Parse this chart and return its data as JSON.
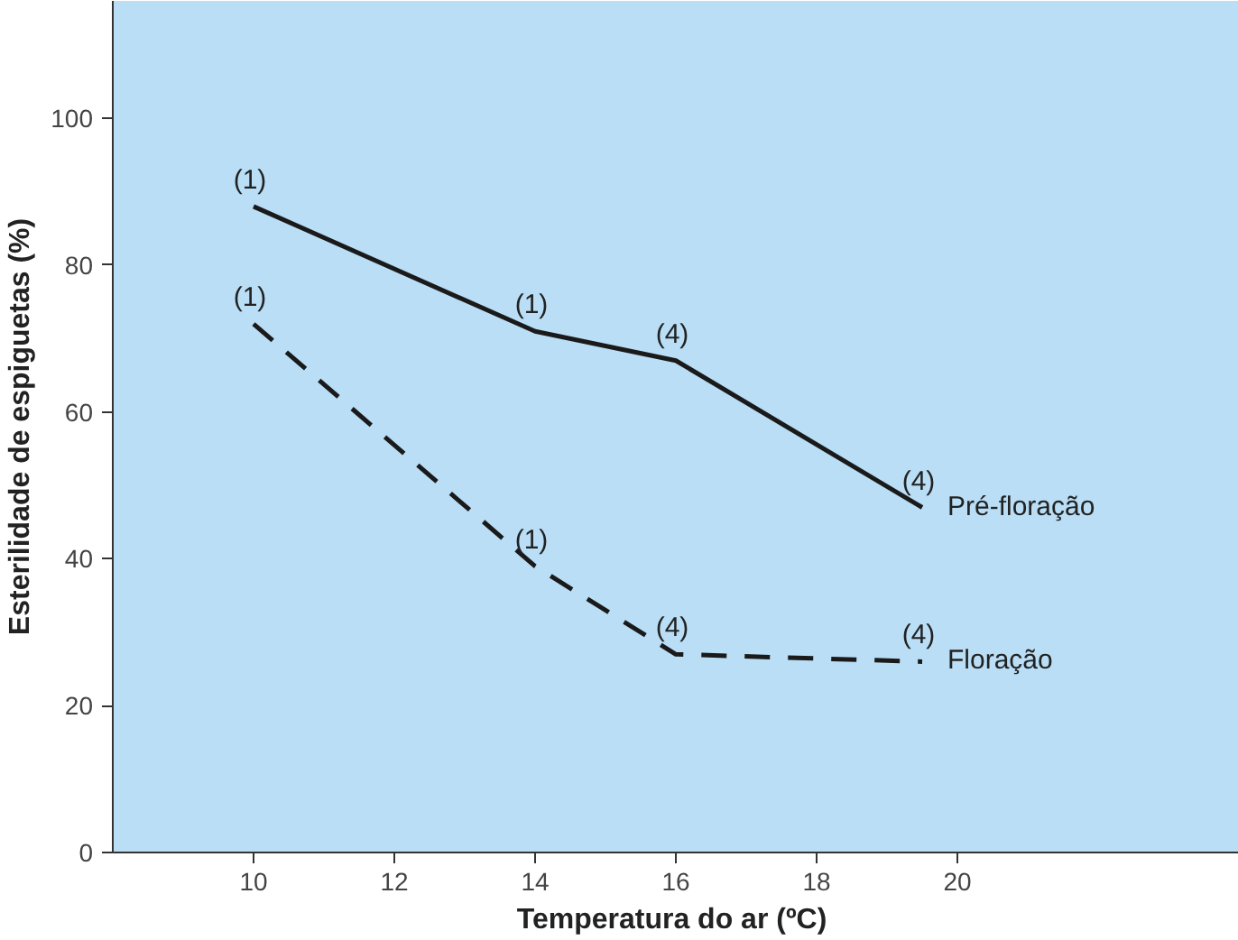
{
  "chart_data": {
    "type": "line",
    "xlabel": "Temperatura do ar  (ºC)",
    "ylabel": "Esterilidade de espiguetas (%)",
    "xlim": [
      8,
      24
    ],
    "ylim": [
      0,
      116
    ],
    "xticks": [
      10,
      12,
      14,
      16,
      18,
      20
    ],
    "yticks": [
      0,
      20,
      40,
      60,
      80,
      100
    ],
    "grid": false,
    "marker": "none",
    "series": [
      {
        "name": "Pré-floração",
        "color": "#1a1a1a",
        "line_style": "solid",
        "x": [
          10,
          14,
          16,
          19.5
        ],
        "values": [
          88,
          71,
          67,
          47
        ]
      },
      {
        "name": "Floração",
        "color": "#1a1a1a",
        "line_style": "dashed",
        "x": [
          10,
          14,
          16,
          19.5
        ],
        "values": [
          72,
          39,
          27,
          26
        ]
      }
    ],
    "annotations": [
      {
        "text": "(1)",
        "x": 10,
        "y": 88
      },
      {
        "text": "(1)",
        "x": 14,
        "y": 71
      },
      {
        "text": "(4)",
        "x": 16,
        "y": 67
      },
      {
        "text": "(4)",
        "x": 19.5,
        "y": 47
      },
      {
        "text": "(1)",
        "x": 10,
        "y": 72
      },
      {
        "text": "(1)",
        "x": 14,
        "y": 39
      },
      {
        "text": "(4)",
        "x": 16,
        "y": 27
      },
      {
        "text": "(4)",
        "x": 19.5,
        "y": 26
      }
    ]
  }
}
